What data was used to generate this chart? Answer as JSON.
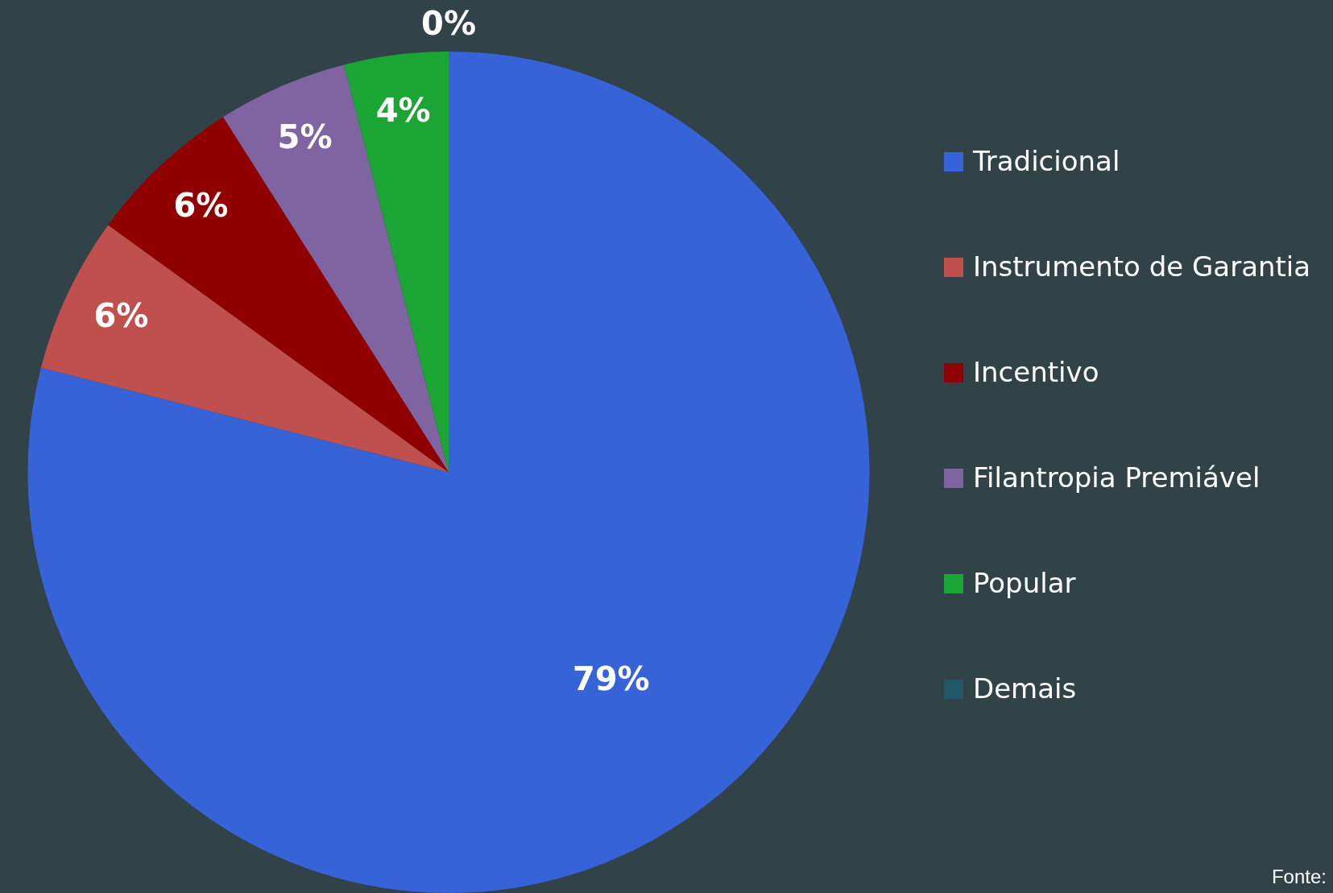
{
  "chart_data": {
    "type": "pie",
    "categories": [
      "Tradicional",
      "Instrumento de Garantia",
      "Incentivo",
      "Filantropia Premiável",
      "Popular",
      "Demais"
    ],
    "values": [
      79,
      6,
      6,
      5,
      4,
      0
    ],
    "colors": [
      "#3763d9",
      "#c0504d",
      "#900000",
      "#8064a2",
      "#1aa535",
      "#215a66"
    ],
    "value_labels": [
      "79%",
      "6%",
      "6%",
      "5%",
      "4%",
      "0%"
    ],
    "legend": "right",
    "annotations": [
      "Fonte:"
    ]
  }
}
